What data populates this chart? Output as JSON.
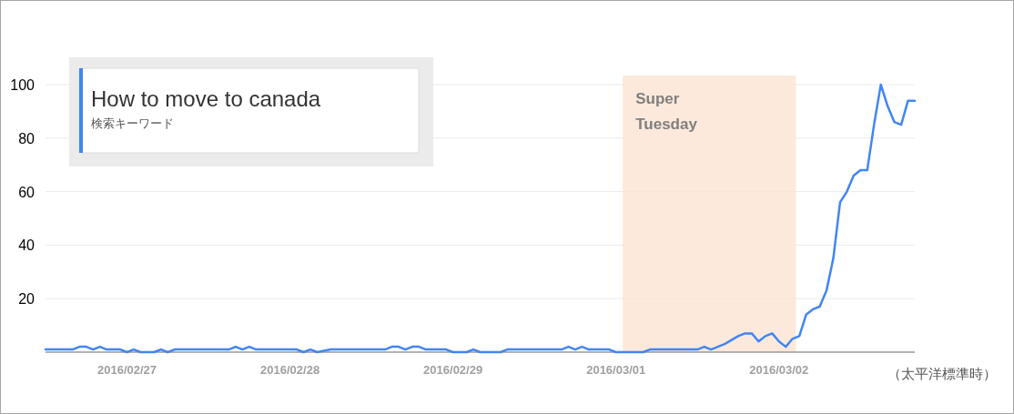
{
  "chart_data": {
    "type": "line",
    "legend_title": "検索キーワード",
    "legend": "top left",
    "grid": "y",
    "xlim": [
      "2016-02-26T12:00",
      "2016-03-02T20:00"
    ],
    "xticks": [
      {
        "value": "2016-02-27",
        "label": "2016/02/27"
      },
      {
        "value": "2016-02-28",
        "label": "2016/02/28"
      },
      {
        "value": "2016-02-29",
        "label": "2016/02/29"
      },
      {
        "value": "2016-03-01",
        "label": "2016/03/01"
      },
      {
        "value": "2016-03-02",
        "label": "2016/03/02"
      }
    ],
    "ylim": [
      0,
      100
    ],
    "yticks": [
      20,
      40,
      60,
      80,
      100
    ],
    "bands": [
      {
        "axis": "x",
        "from": "2016-03-01T01:00",
        "to": "2016-03-02T02:30",
        "label": "Super Tuesday",
        "color": "#fbe5d6"
      }
    ],
    "annotations": [
      "（太平洋標準時）"
    ],
    "series": [
      {
        "name": "How to move to canada",
        "color": "#4285f4",
        "x": [
          "2016-02-26T12:00",
          "2016-02-26T16:00",
          "2016-02-26T17:00",
          "2016-02-26T18:00",
          "2016-02-26T19:00",
          "2016-02-26T20:00",
          "2016-02-26T21:00",
          "2016-02-26T23:00",
          "2016-02-27T00:00",
          "2016-02-27T01:00",
          "2016-02-27T02:00",
          "2016-02-27T04:00",
          "2016-02-27T05:00",
          "2016-02-27T06:00",
          "2016-02-27T07:00",
          "2016-02-27T15:00",
          "2016-02-27T16:00",
          "2016-02-27T17:00",
          "2016-02-27T18:00",
          "2016-02-27T19:00",
          "2016-02-28T01:00",
          "2016-02-28T02:00",
          "2016-02-28T03:00",
          "2016-02-28T04:00",
          "2016-02-28T06:00",
          "2016-02-28T14:00",
          "2016-02-28T15:00",
          "2016-02-28T16:00",
          "2016-02-28T17:00",
          "2016-02-28T18:00",
          "2016-02-28T19:00",
          "2016-02-28T20:00",
          "2016-02-28T23:00",
          "2016-02-29T00:00",
          "2016-02-29T02:00",
          "2016-02-29T03:00",
          "2016-02-29T04:00",
          "2016-02-29T07:00",
          "2016-02-29T08:00",
          "2016-02-29T16:00",
          "2016-02-29T17:00",
          "2016-02-29T18:00",
          "2016-02-29T19:00",
          "2016-02-29T20:00",
          "2016-02-29T23:00",
          "2016-03-01T00:00",
          "2016-03-01T04:00",
          "2016-03-01T05:00",
          "2016-03-01T12:00",
          "2016-03-01T13:00",
          "2016-03-01T14:00",
          "2016-03-01T16:00",
          "2016-03-01T18:00",
          "2016-03-01T19:00",
          "2016-03-01T20:00",
          "2016-03-01T21:00",
          "2016-03-01T22:00",
          "2016-03-01T23:00",
          "2016-03-02T00:00",
          "2016-03-02T01:00",
          "2016-03-02T02:00",
          "2016-03-02T03:00",
          "2016-03-02T04:00",
          "2016-03-02T05:00",
          "2016-03-02T06:00",
          "2016-03-02T07:00",
          "2016-03-02T08:00",
          "2016-03-02T09:00",
          "2016-03-02T10:00",
          "2016-03-02T11:00",
          "2016-03-02T12:00",
          "2016-03-02T13:00",
          "2016-03-02T14:00",
          "2016-03-02T15:00",
          "2016-03-02T16:00",
          "2016-03-02T17:00",
          "2016-03-02T18:00",
          "2016-03-02T19:00",
          "2016-03-02T20:00"
        ],
        "values": [
          1,
          1,
          2,
          2,
          1,
          2,
          1,
          1,
          0,
          1,
          0,
          0,
          1,
          0,
          1,
          1,
          2,
          1,
          2,
          1,
          1,
          0,
          1,
          0,
          1,
          1,
          2,
          2,
          1,
          2,
          2,
          1,
          1,
          0,
          0,
          1,
          0,
          0,
          1,
          1,
          2,
          1,
          2,
          1,
          1,
          0,
          0,
          1,
          1,
          2,
          1,
          3,
          6,
          7,
          7,
          4,
          6,
          7,
          4,
          2,
          5,
          6,
          14,
          16,
          17,
          23,
          35,
          56,
          60,
          66,
          68,
          68,
          85,
          100,
          92,
          86,
          85,
          94,
          94
        ]
      }
    ]
  }
}
